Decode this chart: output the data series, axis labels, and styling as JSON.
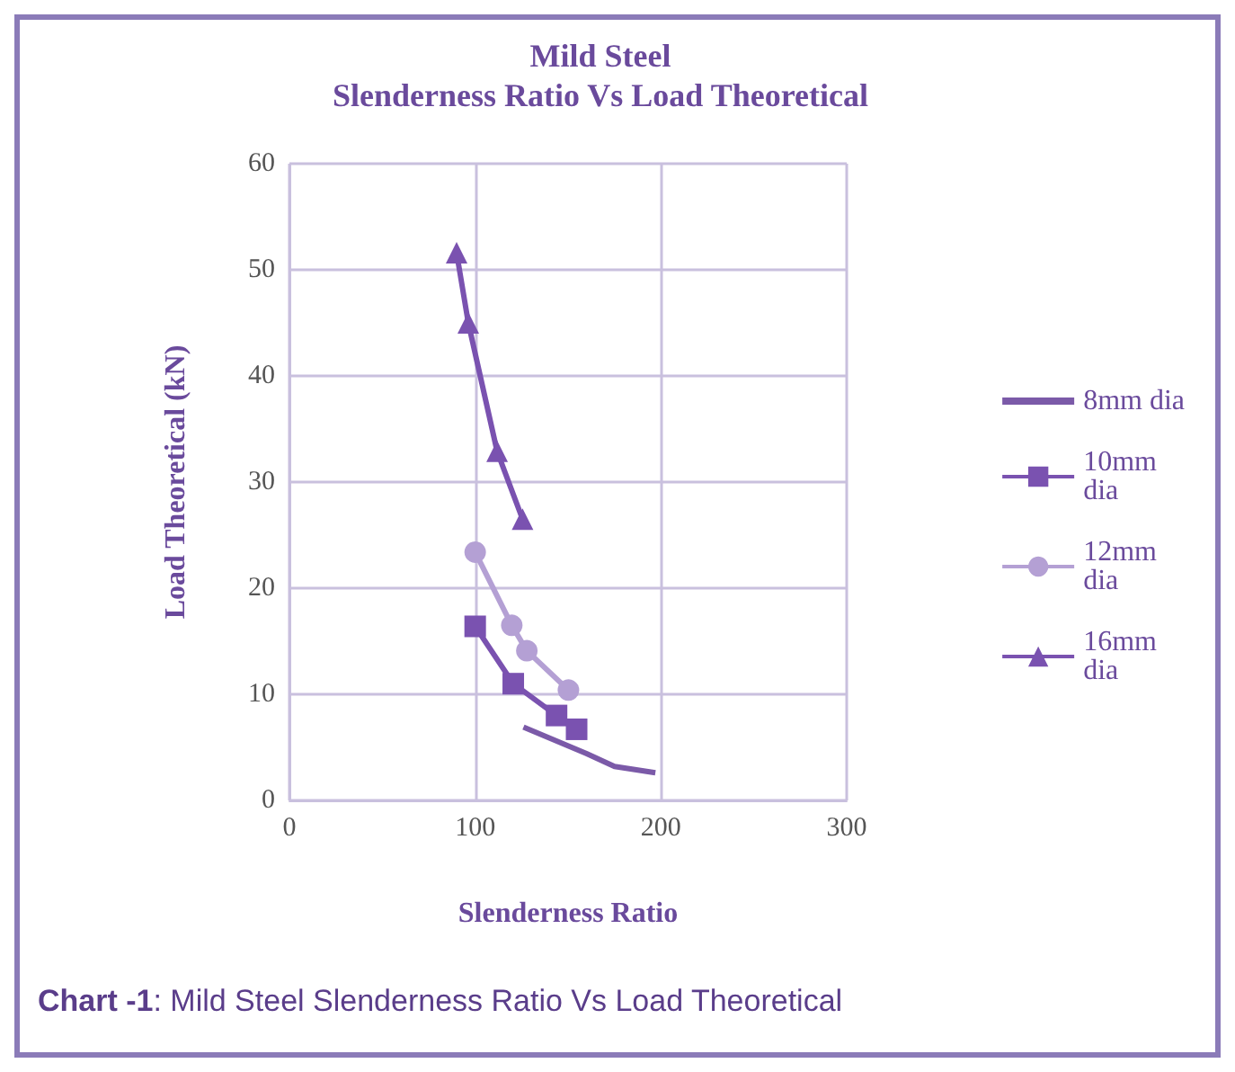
{
  "chart_data": {
    "type": "line",
    "title": "Mild Steel",
    "subtitle": "Slenderness Ratio Vs Load Theoretical",
    "xlabel": "Slenderness Ratio",
    "ylabel": "Load Theoretical (kN)",
    "xlim": [
      0,
      300
    ],
    "xticks": [
      0,
      100,
      200,
      300
    ],
    "ylim": [
      0,
      60
    ],
    "yticks": [
      0,
      10,
      20,
      30,
      40,
      50,
      60
    ],
    "grid": true,
    "legend": "right",
    "line_style": "solid",
    "series": [
      {
        "name": "8mm dia",
        "color": "#7b5aa8",
        "marker": "none",
        "x": [
          126,
          160,
          175,
          197
        ],
        "values": [
          6.9,
          4.4,
          3.2,
          2.6
        ]
      },
      {
        "name": "10mm dia",
        "color": "#7a52b0",
        "marker": "square",
        "x": [
          100,
          120.5,
          143.8,
          154.6
        ],
        "values": [
          16.4,
          11.0,
          8.0,
          6.7
        ]
      },
      {
        "name": "12mm dia",
        "color": "#b4a0d4",
        "marker": "circle",
        "x": [
          100,
          119.7,
          127.8,
          150.2
        ],
        "values": [
          23.4,
          16.5,
          14.1,
          10.4
        ]
      },
      {
        "name": "16mm dia",
        "color": "#7a52b0",
        "marker": "triangle",
        "x": [
          90,
          96.3,
          111.8,
          125.5
        ],
        "values": [
          51.6,
          45.0,
          32.9,
          26.5
        ]
      }
    ],
    "annotations": [
      "Chart -1: Mild Steel Slenderness Ratio Vs Load Theoretical"
    ]
  }
}
